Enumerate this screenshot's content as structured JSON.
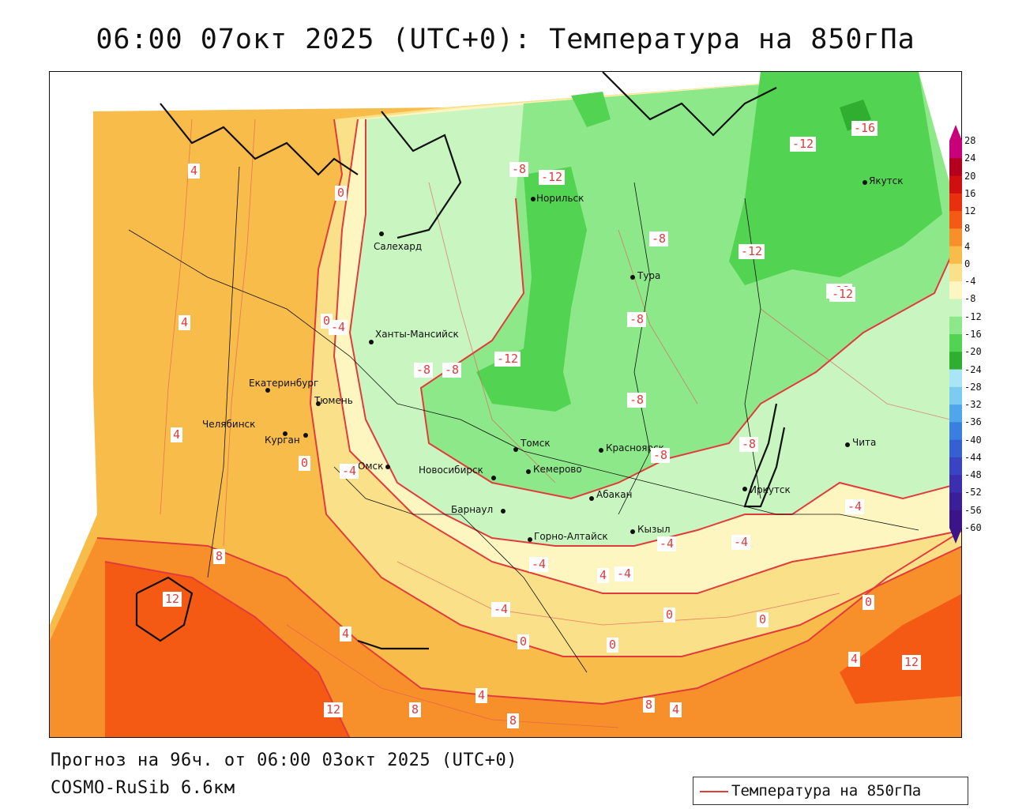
{
  "header": {
    "title": "06:00 07окт 2025 (UTC+0): Температура на 850гПа"
  },
  "footer": {
    "forecast": "Прогноз на 96ч. от 06:00 03окт 2025 (UTC+0)",
    "model": "COSMO-RuSib 6.6км"
  },
  "legend": {
    "label": "Температура на 850гПа",
    "line_color": "#e23b3b"
  },
  "colorbar": {
    "labels": [
      "28",
      "24",
      "20",
      "16",
      "12",
      "8",
      "4",
      "0",
      "-4",
      "-8",
      "-12",
      "-16",
      "-20",
      "-24",
      "-28",
      "-32",
      "-36",
      "-40",
      "-44",
      "-48",
      "-52",
      "-56",
      "-60"
    ],
    "colors": [
      "#c8007a",
      "#b3001c",
      "#d01010",
      "#e8300e",
      "#f45a14",
      "#f7902a",
      "#f8bc4a",
      "#fbe08a",
      "#fdf6c0",
      "#c8f5c0",
      "#8de88a",
      "#52d352",
      "#2fae2f",
      "#a8e6f5",
      "#7ccbf0",
      "#4fa6ea",
      "#3a7fe0",
      "#3460d2",
      "#3a44c2",
      "#3b2fb0",
      "#3a1f99",
      "#3a1488"
    ]
  },
  "cities": [
    {
      "name": "Салехард"
    },
    {
      "name": "Норильск"
    },
    {
      "name": "Якутск"
    },
    {
      "name": "Тура"
    },
    {
      "name": "Ханты-Мансийск"
    },
    {
      "name": "Екатеринбург"
    },
    {
      "name": "Тюмень"
    },
    {
      "name": "Челябинск"
    },
    {
      "name": "Курган"
    },
    {
      "name": "Омск"
    },
    {
      "name": "Новосибирск"
    },
    {
      "name": "Томск"
    },
    {
      "name": "Кемерово"
    },
    {
      "name": "Красноярск"
    },
    {
      "name": "Абакан"
    },
    {
      "name": "Барнаул"
    },
    {
      "name": "Горно-Алтайск"
    },
    {
      "name": "Кызыл"
    },
    {
      "name": "Иркутск"
    },
    {
      "name": "Чита"
    }
  ],
  "isotherm_labels": [
    {
      "text": "-16"
    },
    {
      "text": "-12"
    },
    {
      "text": "-12"
    },
    {
      "text": "-8"
    },
    {
      "text": "-12"
    },
    {
      "text": "-8"
    },
    {
      "text": "-12"
    },
    {
      "text": "-8"
    },
    {
      "text": "-8"
    },
    {
      "text": "-12"
    },
    {
      "text": "-8"
    },
    {
      "text": "-12"
    },
    {
      "text": "-8"
    },
    {
      "text": "-8"
    },
    {
      "text": "-8"
    },
    {
      "text": "-4"
    },
    {
      "text": "0"
    },
    {
      "text": "4"
    },
    {
      "text": "4"
    },
    {
      "text": "4"
    },
    {
      "text": "0"
    },
    {
      "text": "0"
    },
    {
      "text": "-4"
    },
    {
      "text": "-4"
    },
    {
      "text": "-4"
    },
    {
      "text": "-4"
    },
    {
      "text": "-4"
    },
    {
      "text": "-4"
    },
    {
      "text": "4"
    },
    {
      "text": "-4"
    },
    {
      "text": "8"
    },
    {
      "text": "12"
    },
    {
      "text": "4"
    },
    {
      "text": "0"
    },
    {
      "text": "0"
    },
    {
      "text": "0"
    },
    {
      "text": "0"
    },
    {
      "text": "4"
    },
    {
      "text": "0"
    },
    {
      "text": "8"
    },
    {
      "text": "4"
    },
    {
      "text": "12"
    },
    {
      "text": "12"
    },
    {
      "text": "8"
    },
    {
      "text": "8"
    },
    {
      "text": "4"
    },
    {
      "text": "4"
    }
  ]
}
